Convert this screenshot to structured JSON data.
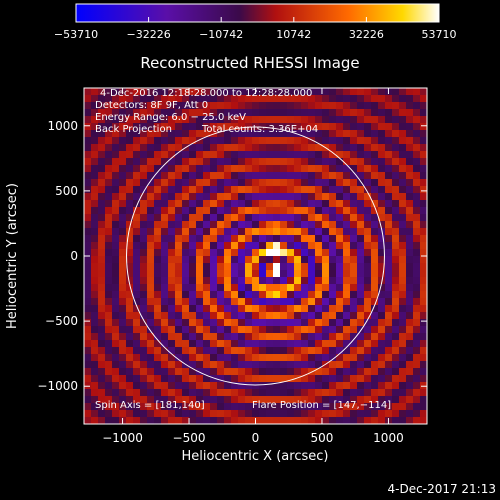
{
  "chart_data": {
    "type": "heatmap",
    "title": "Reconstructed RHESSI Image",
    "xlabel": "Heliocentric X (arcsec)",
    "ylabel": "Heliocentric Y (arcsec)",
    "xlim": [
      -1290,
      1290
    ],
    "ylim": [
      -1290,
      1290
    ],
    "x_ticks": [
      -1000,
      -500,
      0,
      500,
      1000
    ],
    "x_tick_labels": [
      "−1000",
      "−500",
      "0",
      "500",
      "1000"
    ],
    "y_ticks": [
      -1000,
      -500,
      0,
      500,
      1000
    ],
    "y_tick_labels": [
      "−1000",
      "−500",
      "0",
      "500",
      "1000"
    ],
    "colorbar": {
      "range": [
        -53710,
        53710
      ],
      "ticks": [
        -53710,
        -32226,
        -10742,
        10742,
        32226,
        53710
      ],
      "tick_labels": [
        "−53710",
        "−32226",
        "−10742",
        "10742",
        "32226",
        "53710"
      ],
      "colormap": "blue-purple-red-yellow-white"
    },
    "annotations": {
      "time_range": "4-Dec-2016 12:18:28.000 to 12:28:28.000",
      "detectors": "Detectors: 8F 9F, Att 0",
      "energy_range": "Energy Range: 6.0 − 25.0 keV",
      "method": "Back Projection",
      "total_counts": "Total counts: 3.36E+04",
      "spin_axis": "Spin Axis = [181,140]",
      "flare_position": "Flare Position = [147,−114]"
    },
    "solar_limb_radius_arcsec": 970,
    "flare_position": [
      147,
      -114
    ],
    "grid": false
  },
  "footer_timestamp": "4-Dec-2017 21:13"
}
